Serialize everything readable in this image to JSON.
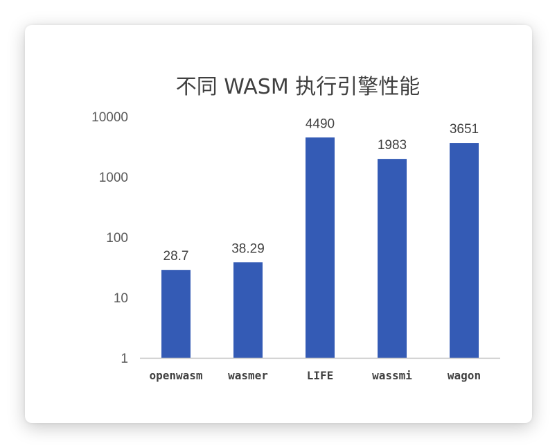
{
  "chart_data": {
    "type": "bar",
    "title": "不同 WASM 执行引擎性能",
    "xlabel": "",
    "ylabel": "",
    "yscale": "log",
    "ylim": [
      1,
      10000
    ],
    "yticks": [
      1,
      10,
      100,
      1000,
      10000
    ],
    "ytick_labels": [
      "1",
      "10",
      "100",
      "1000",
      "10000"
    ],
    "grid": false,
    "legend": "none",
    "categories": [
      "openwasm",
      "wasmer",
      "LIFE",
      "wassmi",
      "wagon"
    ],
    "values": [
      28.7,
      38.29,
      4490,
      1983,
      3651
    ],
    "data_labels": [
      "28.7",
      "38.29",
      "4490",
      "1983",
      "3651"
    ],
    "colors": {
      "bar": "#345BB5",
      "axis": "#BFBFBF"
    }
  }
}
